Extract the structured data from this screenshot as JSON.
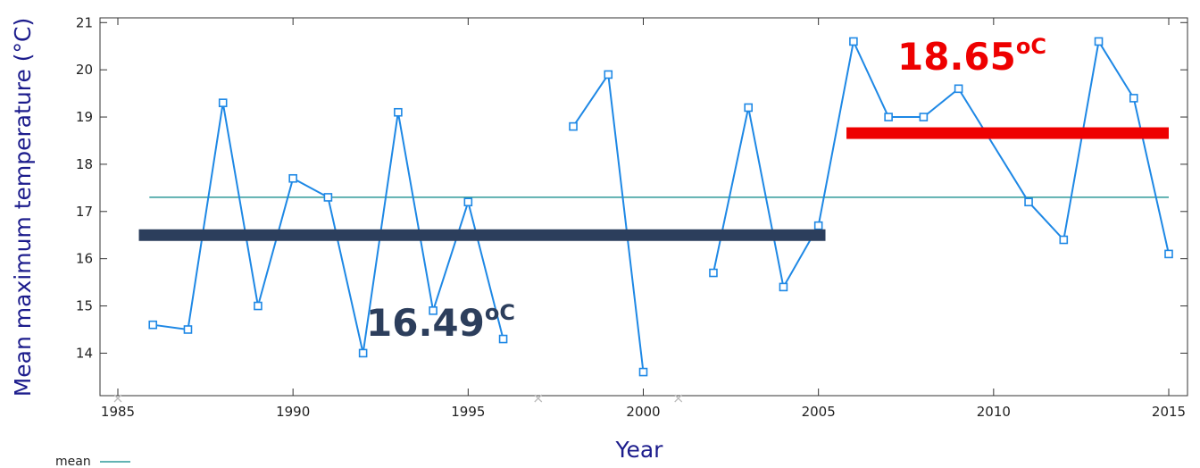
{
  "chart_data": {
    "type": "line",
    "xlabel": "Year",
    "ylabel": "Mean maximum temperature (°C)",
    "xlim": [
      1985,
      2015
    ],
    "ylim": [
      13.1,
      21.1
    ],
    "x_ticks": [
      1985,
      1990,
      1995,
      2000,
      2005,
      2010,
      2015
    ],
    "y_ticks": [
      14,
      15,
      16,
      17,
      18,
      19,
      20,
      21
    ],
    "series": [
      {
        "name": "",
        "color": "#1e88e5",
        "points": [
          {
            "x": 1986,
            "y": 14.6
          },
          {
            "x": 1987,
            "y": 14.5
          },
          {
            "x": 1988,
            "y": 19.3
          },
          {
            "x": 1989,
            "y": 15.0
          },
          {
            "x": 1990,
            "y": 17.7
          },
          {
            "x": 1991,
            "y": 17.3
          },
          {
            "x": 1992,
            "y": 14.0
          },
          {
            "x": 1993,
            "y": 19.1
          },
          {
            "x": 1994,
            "y": 14.9
          },
          {
            "x": 1995,
            "y": 17.2
          },
          {
            "x": 1996,
            "y": 14.3
          },
          {
            "x": 1997,
            "y": null
          },
          {
            "x": 1998,
            "y": 18.8
          },
          {
            "x": 1999,
            "y": 19.9
          },
          {
            "x": 2000,
            "y": 13.6
          },
          {
            "x": 2001,
            "y": null
          },
          {
            "x": 2002,
            "y": 15.7
          },
          {
            "x": 2003,
            "y": 19.2
          },
          {
            "x": 2004,
            "y": 15.4
          },
          {
            "x": 2005,
            "y": 16.7
          },
          {
            "x": 2006,
            "y": 20.6
          },
          {
            "x": 2007,
            "y": 19.0
          },
          {
            "x": 2008,
            "y": 19.0
          },
          {
            "x": 2009,
            "y": 19.6
          },
          {
            "x": 2011,
            "y": 17.2
          },
          {
            "x": 2012,
            "y": 16.4
          },
          {
            "x": 2013,
            "y": 20.6
          },
          {
            "x": 2014,
            "y": 19.4
          },
          {
            "x": 2015,
            "y": 16.1
          }
        ]
      }
    ],
    "missing_years": [
      1985,
      1997,
      2001
    ],
    "mean_line": {
      "label": "mean",
      "value": 17.3,
      "color": "#2e9a9a"
    },
    "period_means": [
      {
        "label": "16.49",
        "unit": "oC",
        "value": 16.49,
        "x_start": 1985.6,
        "x_end": 2005.2,
        "color": "#2c3e5c"
      },
      {
        "label": "18.65",
        "unit": "oC",
        "value": 18.65,
        "x_start": 2005.8,
        "x_end": 2015,
        "color": "#ee0000"
      }
    ],
    "legend": {
      "placement": "bottom-left"
    }
  }
}
